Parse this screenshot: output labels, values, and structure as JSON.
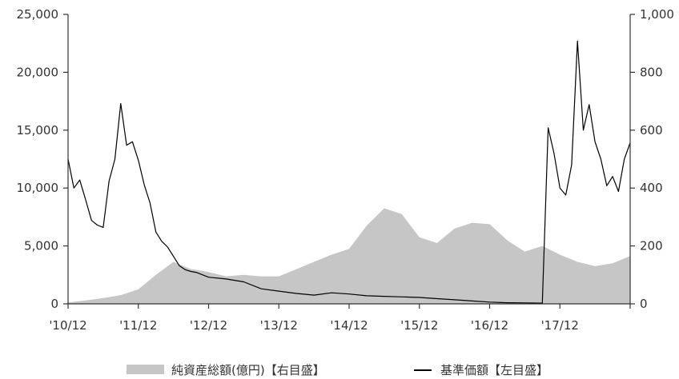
{
  "chart_data": {
    "type": "line",
    "colors": {
      "area": "#c6c6c6",
      "line": "#000000",
      "axis": "#333333"
    },
    "x_axis": {
      "tick_labels": [
        "'10/12",
        "'11/12",
        "'12/12",
        "'13/12",
        "'14/12",
        "'15/12",
        "'16/12",
        "'17/12"
      ],
      "range": [
        "2010-12",
        "2018-12"
      ]
    },
    "y_axis_left": {
      "range": [
        0,
        25000
      ],
      "tick_labels": [
        "0",
        "5,000",
        "10,000",
        "15,000",
        "20,000",
        "25,000"
      ],
      "tick_values": [
        0,
        5000,
        10000,
        15000,
        20000,
        25000
      ]
    },
    "y_axis_right": {
      "range": [
        0,
        1000
      ],
      "tick_labels": [
        "0",
        "200",
        "400",
        "600",
        "800",
        "1,000"
      ],
      "tick_values": [
        0,
        200,
        400,
        600,
        800,
        1000
      ]
    },
    "legend": {
      "placement": "bottom-center",
      "items": [
        {
          "label": "純資産総額(億円)【右目盛】",
          "swatch": "area"
        },
        {
          "label": "基準価額【左目盛】",
          "swatch": "line"
        }
      ]
    },
    "series": [
      {
        "name": "基準価額【左目盛】",
        "kind": "line",
        "axis": "left",
        "x": [
          "2010-12",
          "2011-01",
          "2011-02",
          "2011-03",
          "2011-04",
          "2011-05",
          "2011-06",
          "2011-07",
          "2011-08",
          "2011-09",
          "2011-10",
          "2011-11",
          "2011-12",
          "2012-01",
          "2012-02",
          "2012-03",
          "2012-04",
          "2012-05",
          "2012-06",
          "2012-07",
          "2012-08",
          "2012-09",
          "2012-10",
          "2012-11",
          "2012-12",
          "2013-03",
          "2013-06",
          "2013-09",
          "2013-12",
          "2014-03",
          "2014-06",
          "2014-09",
          "2014-12",
          "2015-03",
          "2015-06",
          "2015-09",
          "2015-12",
          "2016-03",
          "2016-06",
          "2016-09",
          "2016-12",
          "2017-03",
          "2017-06",
          "2017-09",
          "2017-10",
          "2017-11",
          "2017-12",
          "2018-01",
          "2018-02",
          "2018-03",
          "2018-04",
          "2018-05",
          "2018-06",
          "2018-07",
          "2018-08",
          "2018-09",
          "2018-10",
          "2018-11",
          "2018-12"
        ],
        "y": [
          12500,
          10000,
          10700,
          9000,
          7200,
          6800,
          6600,
          10600,
          12500,
          17300,
          13700,
          14000,
          12400,
          10300,
          8700,
          6200,
          5400,
          4900,
          4100,
          3300,
          2950,
          2800,
          2700,
          2500,
          2300,
          2150,
          1900,
          1300,
          1100,
          900,
          750,
          950,
          850,
          700,
          650,
          600,
          550,
          450,
          350,
          250,
          150,
          100,
          80,
          60,
          15200,
          13000,
          10000,
          9400,
          12000,
          22700,
          15000,
          17200,
          14000,
          12500,
          10200,
          11000,
          9700,
          12500,
          13900
        ]
      },
      {
        "name": "純資産総額(億円)【右目盛】",
        "kind": "area",
        "axis": "right",
        "x": [
          "2010-12",
          "2011-03",
          "2011-06",
          "2011-09",
          "2011-12",
          "2012-03",
          "2012-06",
          "2012-09",
          "2012-12",
          "2013-03",
          "2013-06",
          "2013-09",
          "2013-12",
          "2014-03",
          "2014-06",
          "2014-09",
          "2014-12",
          "2015-03",
          "2015-06",
          "2015-09",
          "2015-12",
          "2016-03",
          "2016-06",
          "2016-09",
          "2016-12",
          "2017-03",
          "2017-06",
          "2017-09",
          "2017-12",
          "2018-03",
          "2018-06",
          "2018-09",
          "2018-12"
        ],
        "y": [
          5,
          12,
          20,
          30,
          50,
          100,
          145,
          120,
          110,
          95,
          100,
          95,
          95,
          120,
          145,
          170,
          190,
          270,
          330,
          310,
          230,
          210,
          260,
          280,
          275,
          220,
          180,
          200,
          170,
          145,
          130,
          140,
          165
        ]
      }
    ]
  }
}
